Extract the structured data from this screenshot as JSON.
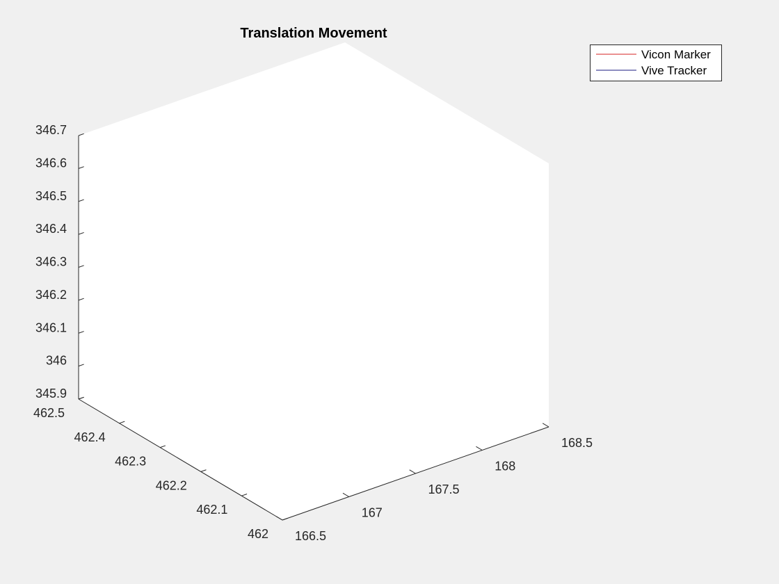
{
  "chart_data": {
    "type": "line",
    "plot_style": "3d",
    "title": "Translation Movement",
    "xlabel": "",
    "ylabel": "",
    "zlabel": "",
    "xlim": [
      166.5,
      168.5
    ],
    "ylim": [
      462,
      462.5
    ],
    "zlim": [
      345.9,
      346.7
    ],
    "x_ticks": [
      "166.5",
      "167",
      "167.5",
      "168",
      "168.5"
    ],
    "y_ticks": [
      "462",
      "462.1",
      "462.2",
      "462.3",
      "462.4",
      "462.5"
    ],
    "z_ticks": [
      "345.9",
      "346",
      "346.1",
      "346.2",
      "346.3",
      "346.4",
      "346.5",
      "346.6",
      "346.7"
    ],
    "grid": false,
    "legend_position": "top-right",
    "series": [
      {
        "name": "Vicon Marker",
        "color": "#d62020",
        "x": [],
        "y": [],
        "z": []
      },
      {
        "name": "Vive Tracker",
        "color": "#1a1a80",
        "x": [],
        "y": [],
        "z": []
      }
    ]
  }
}
